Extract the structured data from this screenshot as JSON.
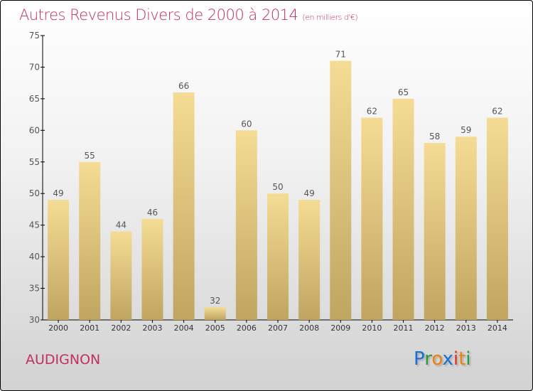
{
  "title": "Autres Revenus Divers de 2000 à 2014",
  "subtitle": "(en milliers d'€)",
  "commune": "AUDIGNON",
  "logo": {
    "letters": [
      "P",
      "r",
      "o",
      "x",
      "i",
      "t",
      "i"
    ],
    "colors": [
      "#1a6fd0",
      "#2a9a3a",
      "#f08010",
      "#1a6fd0",
      "#e03020",
      "#f08010",
      "#2a9a3a"
    ]
  },
  "chart_data": {
    "type": "bar",
    "title": "Autres Revenus Divers de 2000 à 2014",
    "xlabel": "",
    "ylabel": "",
    "categories": [
      "2000",
      "2001",
      "2002",
      "2003",
      "2004",
      "2005",
      "2006",
      "2007",
      "2008",
      "2009",
      "2010",
      "2011",
      "2012",
      "2013",
      "2014"
    ],
    "values": [
      49,
      55,
      44,
      46,
      66,
      32,
      60,
      50,
      49,
      71,
      62,
      65,
      58,
      59,
      62
    ],
    "ylim": [
      30,
      75
    ],
    "yticks": [
      30,
      35,
      40,
      45,
      50,
      55,
      60,
      65,
      70,
      75
    ],
    "grid": false,
    "bar_color_top": "#f5dc94",
    "bar_color_bottom": "#c0a560"
  }
}
